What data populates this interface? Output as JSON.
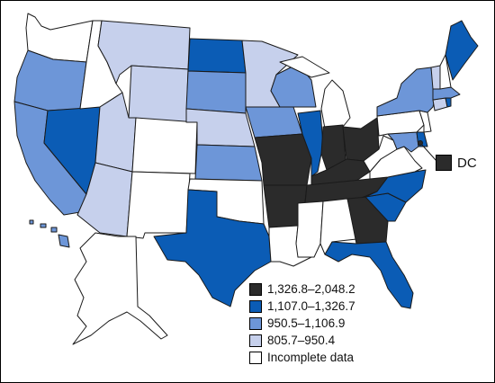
{
  "colors": {
    "tier1": "#2b2b2b",
    "tier2": "#0b5cb5",
    "tier3": "#6d96d8",
    "tier4": "#c6d0ec",
    "incomplete": "#ffffff"
  },
  "legend": {
    "items": [
      {
        "label": "1,326.8–2,048.2",
        "tier": "tier1"
      },
      {
        "label": "1,107.0–1,326.7",
        "tier": "tier2"
      },
      {
        "label": "950.5–1,106.9",
        "tier": "tier3"
      },
      {
        "label": "805.7–950.4",
        "tier": "tier4"
      },
      {
        "label": "Incomplete data",
        "tier": "incomplete"
      }
    ]
  },
  "dc": {
    "label": "DC",
    "tier": "tier1"
  },
  "states": {
    "WA": "incomplete",
    "OR": "tier3",
    "CA": "tier3",
    "NV": "tier2",
    "ID": "incomplete",
    "MT": "tier4",
    "WY": "tier4",
    "UT": "tier4",
    "AZ": "tier4",
    "CO": "incomplete",
    "NM": "incomplete",
    "ND": "tier2",
    "SD": "tier3",
    "NE": "tier4",
    "KS": "tier3",
    "OK": "incomplete",
    "TX": "tier2",
    "MN": "tier4",
    "IA": "tier3",
    "MO": "tier1",
    "AR": "tier1",
    "LA": "incomplete",
    "WI": "tier3",
    "IL": "tier2",
    "MI": "incomplete",
    "IN": "tier1",
    "OH": "tier1",
    "KY": "tier1",
    "TN": "tier1",
    "MS": "incomplete",
    "AL": "incomplete",
    "GA": "tier1",
    "FL": "tier2",
    "SC": "tier2",
    "NC": "tier2",
    "VA": "incomplete",
    "WV": "incomplete",
    "MD": "tier3",
    "DE": "tier2",
    "NJ": "incomplete",
    "PA": "incomplete",
    "NY": "tier3",
    "CT": "tier4",
    "RI": "tier2",
    "MA": "tier3",
    "VT": "tier4",
    "NH": "incomplete",
    "ME": "tier2",
    "AK": "incomplete",
    "HI": "tier3"
  }
}
